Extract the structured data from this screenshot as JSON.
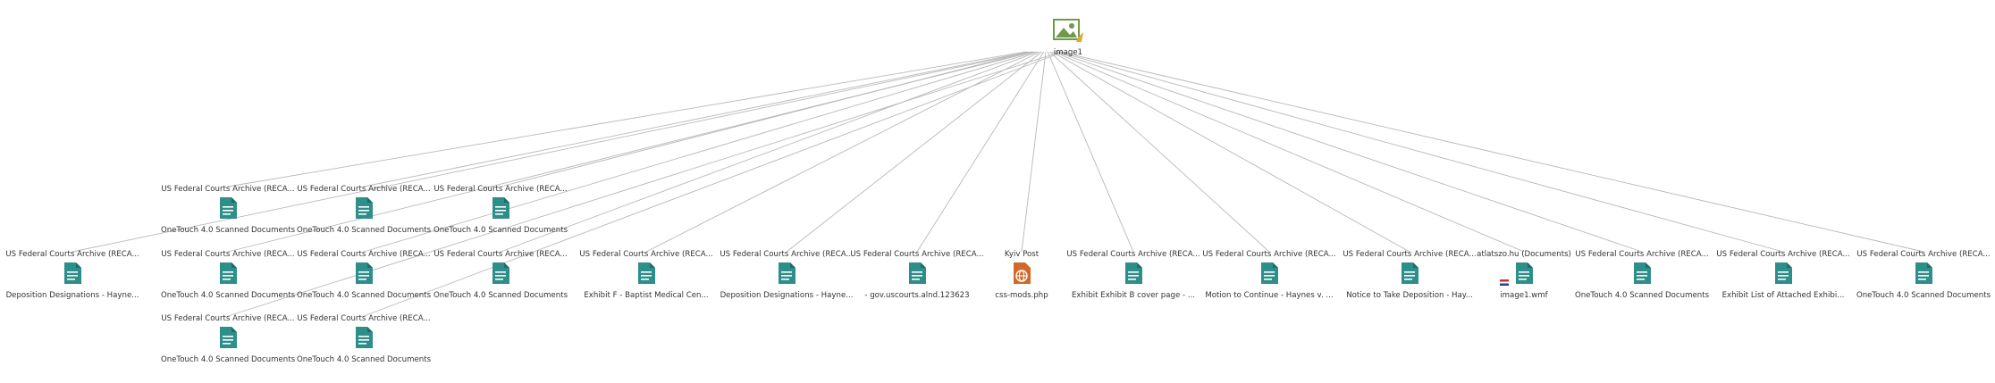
{
  "root": {
    "label": "image1",
    "icon": "image-icon"
  },
  "nodes": [
    {
      "id": "n1",
      "top": "US Federal Courts Archive (RECA...",
      "bottom": "OneTouch 4.0 Scanned Documents",
      "icon": "document-icon"
    },
    {
      "id": "n2",
      "top": "US Federal Courts Archive (RECA...",
      "bottom": "OneTouch 4.0 Scanned Documents",
      "icon": "document-icon"
    },
    {
      "id": "n3",
      "top": "US Federal Courts Archive (RECA...",
      "bottom": "OneTouch 4.0 Scanned Documents",
      "icon": "document-icon"
    },
    {
      "id": "n4",
      "top": "US Federal Courts Archive (RECA...",
      "bottom": "Deposition Designations - Hayne...",
      "icon": "document-icon"
    },
    {
      "id": "n5",
      "top": "US Federal Courts Archive (RECA...",
      "bottom": "OneTouch 4.0 Scanned Documents",
      "icon": "document-icon"
    },
    {
      "id": "n6",
      "top": "US Federal Courts Archive (RECA...",
      "bottom": "OneTouch 4.0 Scanned Documents",
      "icon": "document-icon"
    },
    {
      "id": "n7",
      "top": "US Federal Courts Archive (RECA...",
      "bottom": "OneTouch 4.0 Scanned Documents",
      "icon": "document-icon"
    },
    {
      "id": "n8",
      "top": "US Federal Courts Archive (RECA...",
      "bottom": "Exhibit F - Baptist Medical Cen...",
      "icon": "document-icon"
    },
    {
      "id": "n9",
      "top": "US Federal Courts Archive (RECA...",
      "bottom": "Deposition Designations - Hayne...",
      "icon": "document-icon"
    },
    {
      "id": "n10",
      "top": "US Federal Courts Archive (RECA...",
      "bottom": "- gov.uscourts.alnd.123623",
      "icon": "document-icon"
    },
    {
      "id": "n11",
      "top": "Kyiv Post",
      "bottom": "css-mods.php",
      "icon": "web-page-icon"
    },
    {
      "id": "n12",
      "top": "US Federal Courts Archive (RECA...",
      "bottom": "Exhibit Exhibit B cover page - ...",
      "icon": "document-icon"
    },
    {
      "id": "n13",
      "top": "US Federal Courts Archive (RECA...",
      "bottom": "Motion to Continue - Haynes v. ...",
      "icon": "document-icon"
    },
    {
      "id": "n14",
      "top": "US Federal Courts Archive (RECA...",
      "bottom": "Notice to Take Deposition - Hay...",
      "icon": "document-icon"
    },
    {
      "id": "n15",
      "top": "atlatszo.hu (Documents)",
      "bottom": "image1.wmf",
      "icon": "document-icon"
    },
    {
      "id": "n16",
      "top": "US Federal Courts Archive (RECA...",
      "bottom": "OneTouch 4.0 Scanned Documents",
      "icon": "document-icon"
    },
    {
      "id": "n17",
      "top": "US Federal Courts Archive (RECA...",
      "bottom": "Exhibit List of Attached Exhibi...",
      "icon": "document-icon"
    },
    {
      "id": "n18",
      "top": "US Federal Courts Archive (RECA...",
      "bottom": "OneTouch 4.0 Scanned Documents",
      "icon": "document-icon"
    },
    {
      "id": "n19",
      "top": "US Federal Courts Archive (RECA...",
      "bottom": "OneTouch 4.0 Scanned Documents",
      "icon": "document-icon"
    },
    {
      "id": "n20",
      "top": "US Federal Courts Archive (RECA...",
      "bottom": "OneTouch 4.0 Scanned Documents",
      "icon": "document-icon"
    }
  ],
  "colors": {
    "edge": "#b8b8b8",
    "doc": "#2e8f8a",
    "web": "#d2692b",
    "image": "#6e9a4a",
    "flag_red": "#c4302b",
    "flag_blue": "#2b3f8c"
  }
}
